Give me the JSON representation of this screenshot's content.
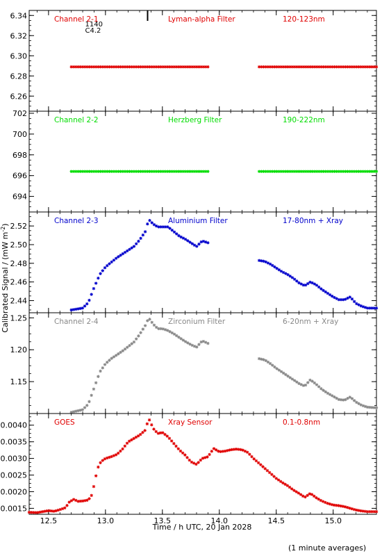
{
  "footer_note": "(1 minute averages)",
  "x_axis": {
    "label": "Time / h UTC, 20 Jan 2028",
    "range": [
      12.33,
      15.38
    ],
    "ticks": [
      12.5,
      13.0,
      13.5,
      14.0,
      14.5,
      15.0
    ],
    "tick_labels": [
      "12.5",
      "13.0",
      "13.5",
      "14.0",
      "14.5",
      "15.0"
    ]
  },
  "y_axis_label": "Calibrated Signal / (mW m",
  "y_axis_label_sup": "-2",
  "y_axis_label_end": ")",
  "colors": {
    "red": "#e00000",
    "green": "#00dd00",
    "blue": "#0000cc",
    "gray": "#888888",
    "goes": "#e00000"
  },
  "annotation": {
    "lines": [
      "1140",
      "C4.2"
    ],
    "time": 13.37
  },
  "chart_data": [
    {
      "type": "scatter",
      "channel": "Channel 2-1",
      "filter": "Lyman-alpha Filter",
      "band": "120-123nm",
      "color": "#e00000",
      "ylim": [
        6.245,
        6.345
      ],
      "yticks": [
        6.26,
        6.28,
        6.3,
        6.32,
        6.34
      ],
      "ytick_labels": [
        "6.26",
        "6.28",
        "6.30",
        "6.32",
        "6.34"
      ],
      "segments": [
        {
          "x": [
            12.7,
            13.9
          ],
          "y": [
            6.289,
            6.289
          ]
        },
        {
          "x": [
            14.35,
            15.38
          ],
          "y": [
            6.289,
            6.289
          ]
        }
      ]
    },
    {
      "type": "scatter",
      "channel": "Channel 2-2",
      "filter": "Herzberg Filter",
      "band": "190-222nm",
      "color": "#00dd00",
      "ylim": [
        692.5,
        702.2
      ],
      "yticks": [
        694,
        696,
        698,
        700,
        702
      ],
      "ytick_labels": [
        "694",
        "696",
        "698",
        "700",
        "702"
      ],
      "segments": [
        {
          "x": [
            12.7,
            13.9
          ],
          "y": [
            696.4,
            696.4
          ]
        },
        {
          "x": [
            14.35,
            15.38
          ],
          "y": [
            696.4,
            696.4
          ]
        }
      ]
    },
    {
      "type": "scatter",
      "channel": "Channel 2-3",
      "filter": "Aluminium Filter",
      "band": "17-80nm + Xray",
      "color": "#0000cc",
      "ylim": [
        2.427,
        2.535
      ],
      "yticks": [
        2.44,
        2.46,
        2.48,
        2.5,
        2.52
      ],
      "ytick_labels": [
        "2.44",
        "2.46",
        "2.48",
        "2.50",
        "2.52"
      ],
      "segments": [
        {
          "x": [
            12.7,
            12.8,
            12.85,
            12.9,
            12.95,
            13.0,
            13.05,
            13.1,
            13.15,
            13.2,
            13.25,
            13.3,
            13.35,
            13.38,
            13.42,
            13.46,
            13.5,
            13.55,
            13.6,
            13.65,
            13.7,
            13.75,
            13.8,
            13.85,
            13.9
          ],
          "y": [
            2.43,
            2.432,
            2.438,
            2.454,
            2.468,
            2.476,
            2.481,
            2.486,
            2.49,
            2.494,
            2.498,
            2.505,
            2.514,
            2.527,
            2.522,
            2.519,
            2.519,
            2.519,
            2.514,
            2.509,
            2.506,
            2.502,
            2.498,
            2.504,
            2.502
          ]
        },
        {
          "x": [
            14.35,
            14.4,
            14.45,
            14.5,
            14.55,
            14.6,
            14.65,
            14.7,
            14.75,
            14.8,
            14.85,
            14.9,
            14.95,
            15.0,
            15.05,
            15.1,
            15.15,
            15.2,
            15.25,
            15.3,
            15.38
          ],
          "y": [
            2.483,
            2.482,
            2.479,
            2.475,
            2.471,
            2.468,
            2.464,
            2.459,
            2.456,
            2.46,
            2.457,
            2.452,
            2.448,
            2.444,
            2.441,
            2.441,
            2.444,
            2.437,
            2.434,
            2.432,
            2.432
          ]
        }
      ]
    },
    {
      "type": "scatter",
      "channel": "Channel 2-4",
      "filter": "Zirconium Filter",
      "band": "6-20nm + Xray",
      "color": "#888888",
      "ylim": [
        1.1,
        1.258
      ],
      "yticks": [
        1.15,
        1.2,
        1.25
      ],
      "ytick_labels": [
        "1.15",
        "1.20",
        "1.25"
      ],
      "segments": [
        {
          "x": [
            12.7,
            12.8,
            12.85,
            12.9,
            12.95,
            13.0,
            13.05,
            13.1,
            13.15,
            13.2,
            13.25,
            13.3,
            13.35,
            13.38,
            13.42,
            13.46,
            13.5,
            13.55,
            13.6,
            13.65,
            13.7,
            13.75,
            13.8,
            13.85,
            13.9
          ],
          "y": [
            1.102,
            1.106,
            1.115,
            1.14,
            1.165,
            1.178,
            1.186,
            1.192,
            1.198,
            1.205,
            1.212,
            1.224,
            1.238,
            1.25,
            1.24,
            1.233,
            1.233,
            1.23,
            1.225,
            1.219,
            1.213,
            1.208,
            1.204,
            1.214,
            1.21
          ]
        },
        {
          "x": [
            14.35,
            14.4,
            14.45,
            14.5,
            14.55,
            14.6,
            14.65,
            14.7,
            14.75,
            14.8,
            14.85,
            14.9,
            14.95,
            15.0,
            15.05,
            15.1,
            15.15,
            15.2,
            15.25,
            15.3,
            15.38
          ],
          "y": [
            1.186,
            1.184,
            1.178,
            1.171,
            1.165,
            1.159,
            1.153,
            1.147,
            1.143,
            1.153,
            1.146,
            1.138,
            1.132,
            1.127,
            1.122,
            1.121,
            1.126,
            1.118,
            1.113,
            1.11,
            1.109
          ]
        }
      ]
    },
    {
      "type": "scatter",
      "channel": "GOES",
      "filter": "Xray Sensor",
      "band": "0.1-0.8nm",
      "color": "#e00000",
      "ylim": [
        0.00132,
        0.00435
      ],
      "yticks": [
        0.0015,
        0.002,
        0.0025,
        0.003,
        0.0035,
        0.004
      ],
      "ytick_labels": [
        "0.0015",
        "0.0020",
        "0.0025",
        "0.0030",
        "0.0035",
        "0.0040"
      ],
      "segments": [
        {
          "x": [
            12.33,
            12.4,
            12.45,
            12.5,
            12.55,
            12.6,
            12.65,
            12.68,
            12.72,
            12.76,
            12.8,
            12.85,
            12.88,
            12.9,
            12.93,
            12.96,
            13.0,
            13.05,
            13.1,
            13.15,
            13.2,
            13.25,
            13.3,
            13.35,
            13.38,
            13.42,
            13.46,
            13.5,
            13.55,
            13.6,
            13.65,
            13.7,
            13.75,
            13.8,
            13.85,
            13.9,
            13.95,
            14.0,
            14.05,
            14.1,
            14.15,
            14.2,
            14.25,
            14.3,
            14.35,
            14.4,
            14.45,
            14.5,
            14.55,
            14.6,
            14.65,
            14.7,
            14.75,
            14.8,
            14.85,
            14.9,
            14.95,
            15.0,
            15.05,
            15.1,
            15.15,
            15.2,
            15.25,
            15.3,
            15.38
          ],
          "y": [
            0.00138,
            0.00137,
            0.0014,
            0.00143,
            0.00141,
            0.00146,
            0.00152,
            0.00168,
            0.00177,
            0.00171,
            0.00172,
            0.00175,
            0.0019,
            0.0022,
            0.0027,
            0.0029,
            0.003,
            0.00305,
            0.00312,
            0.00328,
            0.0035,
            0.0036,
            0.0037,
            0.00385,
            0.0042,
            0.0039,
            0.00375,
            0.00378,
            0.00365,
            0.00345,
            0.00325,
            0.0031,
            0.0029,
            0.00282,
            0.003,
            0.00305,
            0.0033,
            0.0032,
            0.00322,
            0.00326,
            0.00328,
            0.00326,
            0.00318,
            0.003,
            0.00285,
            0.0027,
            0.00255,
            0.0024,
            0.00228,
            0.00218,
            0.00205,
            0.00195,
            0.00183,
            0.00195,
            0.00182,
            0.00172,
            0.00165,
            0.0016,
            0.00158,
            0.00155,
            0.0015,
            0.00145,
            0.00142,
            0.0014,
            0.0014
          ]
        }
      ]
    }
  ]
}
